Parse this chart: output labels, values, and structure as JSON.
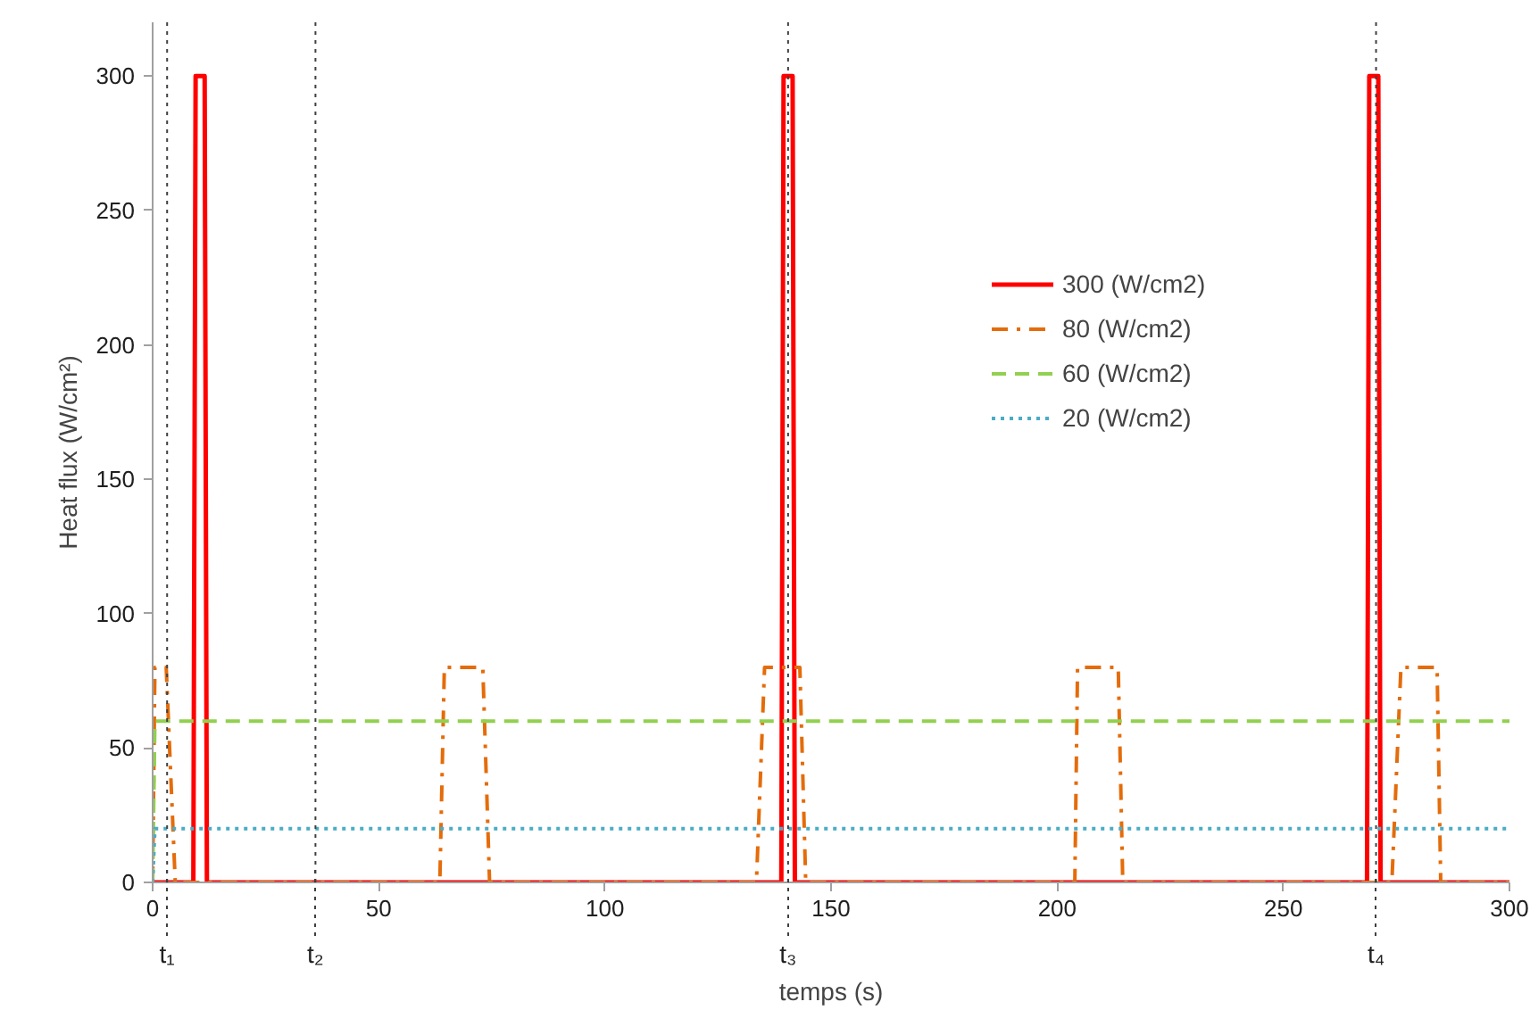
{
  "chart_data": {
    "type": "line",
    "xlabel": "temps (s)",
    "ylabel": "Heat flux (W/cm²)",
    "xlim": [
      0,
      300
    ],
    "ylim": [
      0,
      320
    ],
    "xticks": [
      0,
      50,
      100,
      150,
      200,
      250,
      300
    ],
    "yticks": [
      0,
      50,
      100,
      150,
      200,
      250,
      300
    ],
    "grid": false,
    "legend": "right",
    "marker": "none",
    "series": [
      {
        "name": "300 (W/cm2)",
        "color": "#ff0000",
        "line_style": "solid",
        "x": [
          0,
          9,
          9.5,
          11.5,
          12,
          139,
          139.5,
          141.5,
          142,
          268.5,
          269,
          271,
          271.5,
          300
        ],
        "values": [
          0,
          0,
          300,
          300,
          0,
          0,
          300,
          300,
          0,
          0,
          300,
          300,
          0,
          0
        ]
      },
      {
        "name": "80 (W/cm2)",
        "color": "#e46c0a",
        "line_style": "dashdot",
        "x": [
          0,
          0.5,
          3,
          5,
          63.5,
          64.5,
          73,
          74.5,
          133.5,
          135.3,
          143.1,
          144.4,
          203.9,
          204.5,
          213.5,
          214.5,
          274,
          276,
          284,
          284.8,
          300
        ],
        "values": [
          0,
          80,
          80,
          0,
          0,
          80,
          80,
          0,
          0,
          80,
          80,
          0,
          0,
          80,
          80,
          0,
          0,
          80,
          80,
          0,
          0
        ]
      },
      {
        "name": "60 (W/cm2)",
        "color": "#92d050",
        "line_style": "dashed",
        "x": [
          0,
          0.5,
          300
        ],
        "values": [
          0,
          60,
          60
        ]
      },
      {
        "name": "20 (W/cm2)",
        "color": "#4bacc6",
        "line_style": "dotted",
        "x": [
          0,
          0.5,
          300
        ],
        "values": [
          0,
          20,
          20
        ]
      }
    ],
    "ref_lines": [
      {
        "axis": "x",
        "value": 3.2,
        "label": "t₁",
        "color": "#404040",
        "line_style": "dotted"
      },
      {
        "axis": "x",
        "value": 36,
        "label": "t₂",
        "color": "#404040",
        "line_style": "dotted"
      },
      {
        "axis": "x",
        "value": 140.5,
        "label": "t₃",
        "color": "#404040",
        "line_style": "dotted"
      },
      {
        "axis": "x",
        "value": 270.5,
        "label": "t₄",
        "color": "#404040",
        "line_style": "dotted"
      }
    ]
  }
}
